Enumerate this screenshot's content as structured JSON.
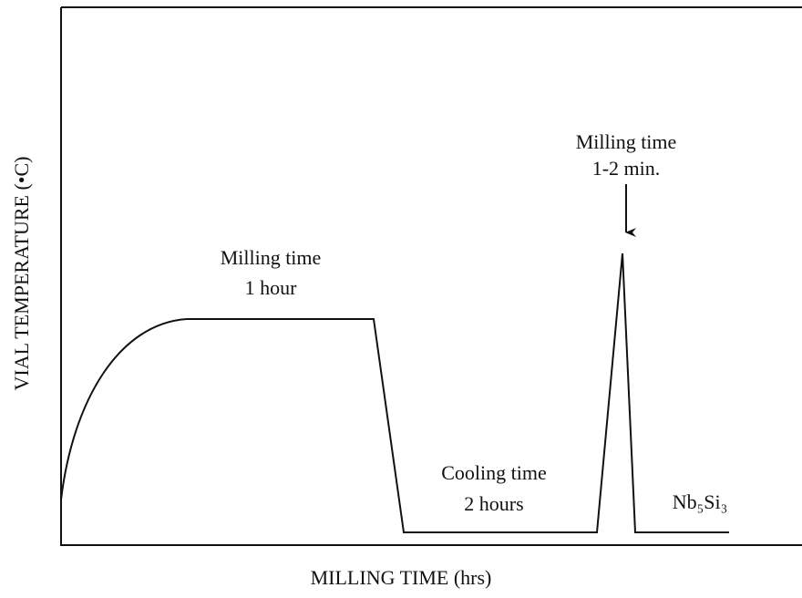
{
  "axes": {
    "x_label": "MILLING TIME (hrs)",
    "y_label": "VIAL TEMPERATURE (•C)"
  },
  "annotations": [
    {
      "lines": [
        "Milling time",
        "1 hour"
      ]
    },
    {
      "lines": [
        "Cooling time",
        "2 hours"
      ]
    },
    {
      "lines": [
        "Milling time",
        "1-2 min."
      ]
    },
    {
      "lines": [
        "Nb₅Si₃"
      ]
    }
  ]
}
